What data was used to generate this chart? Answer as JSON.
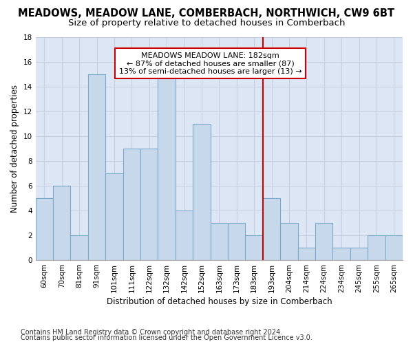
{
  "title": "MEADOWS, MEADOW LANE, COMBERBACH, NORTHWICH, CW9 6BT",
  "subtitle": "Size of property relative to detached houses in Comberbach",
  "xlabel": "Distribution of detached houses by size in Comberbach",
  "ylabel": "Number of detached properties",
  "categories": [
    "60sqm",
    "70sqm",
    "81sqm",
    "91sqm",
    "101sqm",
    "111sqm",
    "122sqm",
    "132sqm",
    "142sqm",
    "152sqm",
    "163sqm",
    "173sqm",
    "183sqm",
    "193sqm",
    "204sqm",
    "214sqm",
    "224sqm",
    "234sqm",
    "245sqm",
    "255sqm",
    "265sqm"
  ],
  "values": [
    5,
    6,
    2,
    15,
    7,
    9,
    9,
    15,
    4,
    11,
    3,
    3,
    2,
    5,
    3,
    1,
    3,
    1,
    1,
    2,
    2
  ],
  "bar_color": "#c8d8eb",
  "bar_edge_color": "#7aaac8",
  "grid_color": "#c8cfe0",
  "background_color": "#dce6f5",
  "fig_background": "#ffffff",
  "vline_x": 12.5,
  "vline_color": "#cc0000",
  "annotation_text": "MEADOWS MEADOW LANE: 182sqm\n← 87% of detached houses are smaller (87)\n13% of semi-detached houses are larger (13) →",
  "annotation_box_color": "#cc0000",
  "ylim": [
    0,
    18
  ],
  "yticks": [
    0,
    2,
    4,
    6,
    8,
    10,
    12,
    14,
    16,
    18
  ],
  "footer1": "Contains HM Land Registry data © Crown copyright and database right 2024.",
  "footer2": "Contains public sector information licensed under the Open Government Licence v3.0.",
  "title_fontsize": 10.5,
  "subtitle_fontsize": 9.5,
  "label_fontsize": 8.5,
  "tick_fontsize": 7.5,
  "footer_fontsize": 7,
  "annotation_fontsize": 8
}
